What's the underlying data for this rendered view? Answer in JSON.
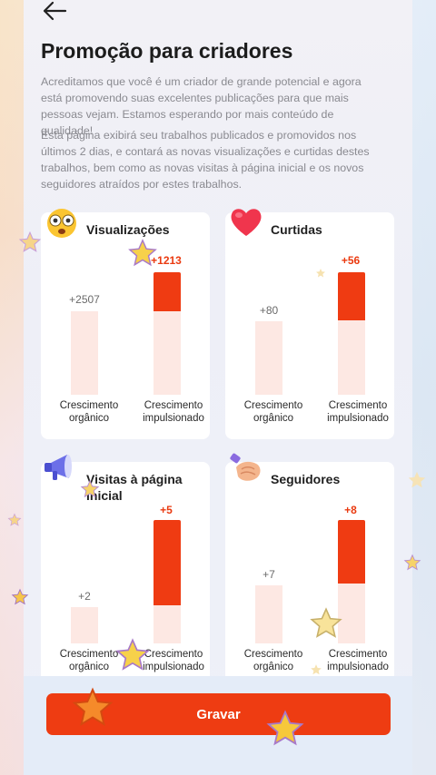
{
  "header": {
    "title": "Promoção para criadores"
  },
  "description": {
    "p1": "Acreditamos que você é um criador de grande potencial e agora está promovendo suas excelentes publicações para que mais pessoas vejam. Estamos esperando por mais conteúdo de qualidade!",
    "p2": "Esta página exibirá seu trabalhos publicados e promovidos nos últimos 2 dias, e contará as novas visualizações e curtidas destes trabalhos, bem como as novas visitas à página inicial e os novos seguidores atraídos por estes trabalhos."
  },
  "cards": [
    {
      "title": "Visualizações",
      "icon": "dizzy-face-icon",
      "organic_value": "+2507",
      "boost_value": "+1213",
      "organic_label": "Crescimento orgânico",
      "boost_label": "Crescimento impulsionado"
    },
    {
      "title": "Curtidas",
      "icon": "heart-icon",
      "organic_value": "+80",
      "boost_value": "+56",
      "organic_label": "Crescimento orgânico",
      "boost_label": "Crescimento impulsionado"
    },
    {
      "title": "Visitas à página inicial",
      "icon": "megaphone-icon",
      "organic_value": "+2",
      "boost_value": "+5",
      "organic_label": "Crescimento orgânico",
      "boost_label": "Crescimento impulsionado"
    },
    {
      "title": "Seguidores",
      "icon": "handshake-icon",
      "organic_value": "+7",
      "boost_value": "+8",
      "organic_label": "Crescimento orgânico",
      "boost_label": "Crescimento impulsionado"
    }
  ],
  "footer": {
    "record_label": "Gravar"
  },
  "colors": {
    "accent": "#ee3c12",
    "bar_base": "#fde8e3",
    "bar_boost": "#ef3b12"
  }
}
